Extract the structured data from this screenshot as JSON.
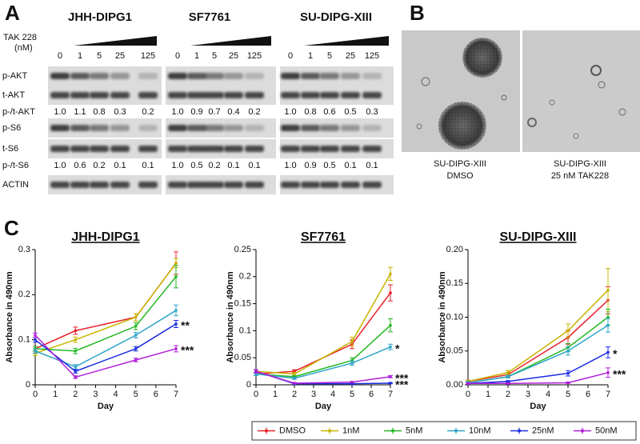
{
  "panel_a": {
    "label": "A",
    "cell_lines": [
      "JHH-DIPG1",
      "SF7761",
      "SU-DIPG-XIII"
    ],
    "treatment": "TAK 228",
    "unit": "(nM)",
    "doses": [
      "0",
      "1",
      "5",
      "25",
      "125"
    ],
    "rows": [
      {
        "label": "p-AKT"
      },
      {
        "label": "t-AKT"
      },
      {
        "label": "p-/t-AKT",
        "values": [
          [
            "1.0",
            "1.1",
            "0.8",
            "0.3",
            "0.2"
          ],
          [
            "1.0",
            "0.9",
            "0.7",
            "0.4",
            "0.2"
          ],
          [
            "1.0",
            "0.8",
            "0.6",
            "0.5",
            "0.3"
          ]
        ]
      },
      {
        "label": "p-S6"
      },
      {
        "label": "t-S6"
      },
      {
        "label": "p-/t-S6",
        "values": [
          [
            "1.0",
            "0.6",
            "0.2",
            "0.1",
            "0.1"
          ],
          [
            "1.0",
            "0.5",
            "0.2",
            "0.1",
            "0.1"
          ],
          [
            "1.0",
            "0.9",
            "0.5",
            "0.1",
            "0.1"
          ]
        ]
      },
      {
        "label": "ACTIN"
      }
    ]
  },
  "panel_b": {
    "label": "B",
    "images": [
      {
        "caption": [
          "SU-DIPG-XIII",
          "DMSO"
        ]
      },
      {
        "caption": [
          "SU-DIPG-XIII",
          "25 nM TAK228"
        ]
      }
    ]
  },
  "panel_c": {
    "label": "C"
  },
  "chart_data": [
    {
      "type": "line",
      "title": "JHH-DIPG1",
      "x_label": "Day",
      "y_label": "Absorbance in 490nm",
      "x": [
        0,
        2,
        5,
        7
      ],
      "xlim": [
        0,
        7
      ],
      "xticks": [
        0,
        1,
        2,
        3,
        4,
        5,
        6,
        7
      ],
      "ylim": [
        0,
        0.3
      ],
      "yticks": [
        0,
        0.1,
        0.2,
        0.3
      ],
      "series": [
        {
          "name": "DMSO",
          "color": "#e8202a",
          "values": [
            0.08,
            0.12,
            0.15,
            0.27
          ],
          "errors": [
            0.005,
            0.008,
            0.008,
            0.025
          ]
        },
        {
          "name": "1nM",
          "color": "#c8b400",
          "values": [
            0.07,
            0.1,
            0.15,
            0.27
          ],
          "errors": [
            0.005,
            0.006,
            0.008,
            0.01
          ]
        },
        {
          "name": "5nM",
          "color": "#22b822",
          "values": [
            0.08,
            0.075,
            0.13,
            0.24
          ],
          "errors": [
            0.005,
            0.006,
            0.008,
            0.025
          ]
        },
        {
          "name": "10nM",
          "color": "#2ea4c8",
          "values": [
            0.075,
            0.04,
            0.11,
            0.165
          ],
          "errors": [
            0.005,
            0.005,
            0.006,
            0.012
          ]
        },
        {
          "name": "25nM",
          "color": "#1a2ee0",
          "values": [
            0.1,
            0.03,
            0.08,
            0.135
          ],
          "errors": [
            0.005,
            0.004,
            0.005,
            0.008
          ],
          "annotation": "**"
        },
        {
          "name": "50nM",
          "color": "#b020d8",
          "values": [
            0.11,
            0.017,
            0.055,
            0.08
          ],
          "errors": [
            0.005,
            0.003,
            0.004,
            0.007
          ],
          "annotation": "***"
        }
      ]
    },
    {
      "type": "line",
      "title": "SF7761",
      "x_label": "Day",
      "y_label": "Absorbance in 490nm",
      "x": [
        0,
        2,
        5,
        7
      ],
      "xlim": [
        0,
        7
      ],
      "xticks": [
        0,
        1,
        2,
        3,
        4,
        5,
        6,
        7
      ],
      "ylim": [
        0,
        0.25
      ],
      "yticks": [
        0,
        0.05,
        0.1,
        0.15,
        0.2,
        0.25
      ],
      "series": [
        {
          "color": "#e8202a",
          "values": [
            0.02,
            0.025,
            0.075,
            0.17
          ],
          "errors": [
            0.003,
            0.003,
            0.008,
            0.015
          ]
        },
        {
          "color": "#c8b400",
          "values": [
            0.025,
            0.02,
            0.08,
            0.205
          ],
          "errors": [
            0.003,
            0.003,
            0.008,
            0.012
          ]
        },
        {
          "color": "#22b822",
          "values": [
            0.02,
            0.015,
            0.045,
            0.11
          ],
          "errors": [
            0.003,
            0.002,
            0.005,
            0.012
          ]
        },
        {
          "color": "#2ea4c8",
          "values": [
            0.02,
            0.012,
            0.04,
            0.07
          ],
          "errors": [
            0.003,
            0.002,
            0.004,
            0.005
          ],
          "annotation": "*"
        },
        {
          "color": "#1a2ee0",
          "values": [
            0.025,
            0.002,
            0.002,
            0.003
          ],
          "errors": [
            0.003,
            0.001,
            0.001,
            0.001
          ],
          "annotation": "***"
        },
        {
          "color": "#b020d8",
          "values": [
            0.025,
            0.003,
            0.005,
            0.015
          ],
          "errors": [
            0.003,
            0.001,
            0.001,
            0.002
          ],
          "annotation": "***"
        }
      ]
    },
    {
      "type": "line",
      "title": "SU-DIPG-XIII",
      "x_label": "Day",
      "y_label": "Absorbance in 490nm",
      "x": [
        0,
        2,
        5,
        7
      ],
      "xlim": [
        0,
        7
      ],
      "xticks": [
        0,
        1,
        2,
        3,
        4,
        5,
        6,
        7
      ],
      "ylim": [
        0,
        0.2
      ],
      "yticks": [
        {
          "value": 0,
          "label": "0.00"
        },
        {
          "value": 0.05,
          "label": "0.05"
        },
        {
          "value": 0.1,
          "label": "0.10"
        },
        {
          "value": 0.15,
          "label": "0.15"
        },
        {
          "value": 0.2,
          "label": "0.20"
        }
      ],
      "series": [
        {
          "color": "#e8202a",
          "values": [
            0.005,
            0.015,
            0.07,
            0.125
          ],
          "errors": [
            0.002,
            0.003,
            0.01,
            0.02
          ]
        },
        {
          "color": "#c8b400",
          "values": [
            0.005,
            0.018,
            0.08,
            0.14
          ],
          "errors": [
            0.002,
            0.003,
            0.01,
            0.032
          ]
        },
        {
          "color": "#22b822",
          "values": [
            0.003,
            0.012,
            0.055,
            0.1
          ],
          "errors": [
            0.002,
            0.002,
            0.006,
            0.012
          ]
        },
        {
          "color": "#2ea4c8",
          "values": [
            0.003,
            0.012,
            0.05,
            0.088
          ],
          "errors": [
            0.002,
            0.002,
            0.006,
            0.01
          ]
        },
        {
          "color": "#1a2ee0",
          "values": [
            0.002,
            0.005,
            0.017,
            0.048
          ],
          "errors": [
            0.001,
            0.001,
            0.004,
            0.008
          ],
          "annotation": "*"
        },
        {
          "color": "#b020d8",
          "values": [
            0.002,
            0.002,
            0.003,
            0.018
          ],
          "errors": [
            0.001,
            0.001,
            0.001,
            0.007
          ],
          "annotation": "***"
        }
      ]
    }
  ]
}
